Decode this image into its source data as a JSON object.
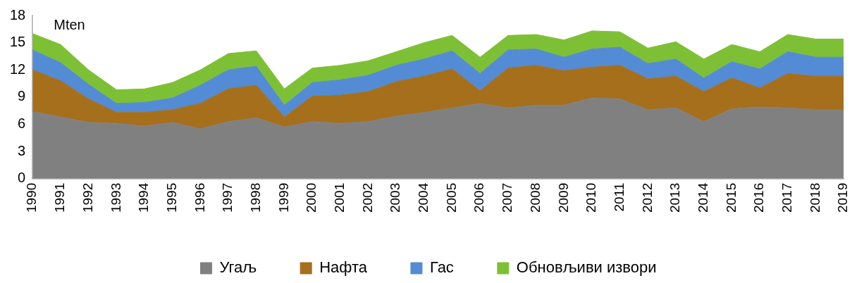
{
  "chart_data": {
    "type": "area",
    "stacked": true,
    "ylabel": "Mten",
    "categories": [
      "1990",
      "1991",
      "1992",
      "1993",
      "1994",
      "1995",
      "1996",
      "1997",
      "1998",
      "1999",
      "2000",
      "2001",
      "2002",
      "2003",
      "2004",
      "2005",
      "2006",
      "2007",
      "2008",
      "2009",
      "2010",
      "2011",
      "2012",
      "2013",
      "2014",
      "2015",
      "2016",
      "2017",
      "2018",
      "2019"
    ],
    "series": [
      {
        "name": "Угаљ",
        "color": "#808080",
        "values": [
          7.4,
          6.8,
          6.2,
          6.1,
          5.8,
          6.2,
          5.5,
          6.3,
          6.7,
          5.7,
          6.3,
          6.1,
          6.3,
          6.9,
          7.3,
          7.8,
          8.3,
          7.8,
          8.1,
          8.1,
          8.9,
          8.8,
          7.6,
          7.8,
          6.3,
          7.7,
          7.9,
          7.8,
          7.6,
          7.6
        ]
      },
      {
        "name": "Нафта",
        "color": "#a66f1b",
        "values": [
          4.6,
          4.0,
          2.6,
          1.2,
          1.5,
          1.4,
          2.8,
          3.6,
          3.6,
          1.1,
          2.8,
          3.1,
          3.3,
          3.8,
          4.0,
          4.3,
          1.4,
          4.4,
          4.4,
          3.8,
          3.4,
          3.7,
          3.4,
          3.5,
          3.3,
          3.4,
          2.1,
          3.8,
          3.7,
          3.7
        ]
      },
      {
        "name": "Гас",
        "color": "#538cd4",
        "values": [
          2.2,
          2.0,
          1.6,
          1.0,
          1.1,
          1.3,
          2.0,
          2.1,
          2.1,
          1.3,
          1.5,
          1.7,
          1.8,
          1.8,
          1.9,
          2.0,
          1.9,
          2.0,
          1.8,
          1.5,
          2.0,
          2.0,
          1.7,
          1.9,
          1.5,
          1.8,
          2.1,
          2.4,
          2.1,
          2.1
        ]
      },
      {
        "name": "Обновљиви извори",
        "color": "#7ec035",
        "values": [
          1.8,
          2.0,
          1.6,
          1.5,
          1.5,
          1.7,
          1.7,
          1.8,
          1.7,
          1.8,
          1.6,
          1.6,
          1.6,
          1.5,
          1.8,
          1.7,
          1.8,
          1.6,
          1.6,
          1.9,
          2.0,
          1.7,
          1.7,
          1.9,
          2.1,
          1.9,
          1.9,
          1.9,
          2.0,
          2.0
        ]
      }
    ],
    "ylim": [
      0,
      18
    ],
    "yticks": [
      0,
      3,
      6,
      9,
      12,
      15,
      18
    ],
    "grid": false,
    "legend": "bottom"
  }
}
